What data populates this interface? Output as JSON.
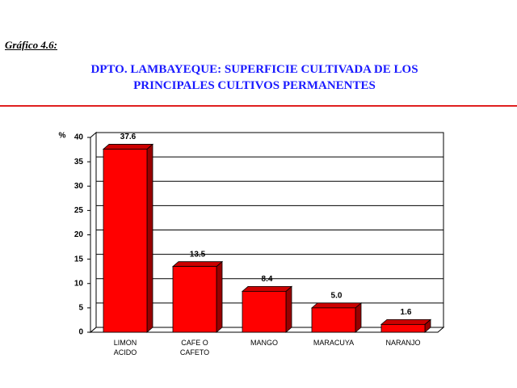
{
  "caption": "Gráfico 4.6:",
  "chart_data": {
    "type": "bar3d",
    "title": "DPTO. LAMBAYEQUE: SUPERFICIE CULTIVADA DE LOS PRINCIPALES CULTIVOS PERMANENTES",
    "y_label": "%",
    "categories": [
      "LIMON ACIDO",
      "CAFE O CAFETO",
      "MANGO",
      "MARACUYA",
      "NARANJO"
    ],
    "values": [
      37.6,
      13.5,
      8.4,
      5.0,
      1.6
    ],
    "value_labels": [
      "37.6",
      "13.5",
      "8.4",
      "5.0",
      "1.6"
    ],
    "color": "#ff0000",
    "ylim": [
      0,
      40
    ],
    "yticks": [
      0,
      5,
      10,
      15,
      20,
      25,
      30,
      35,
      40
    ],
    "grid": true
  }
}
